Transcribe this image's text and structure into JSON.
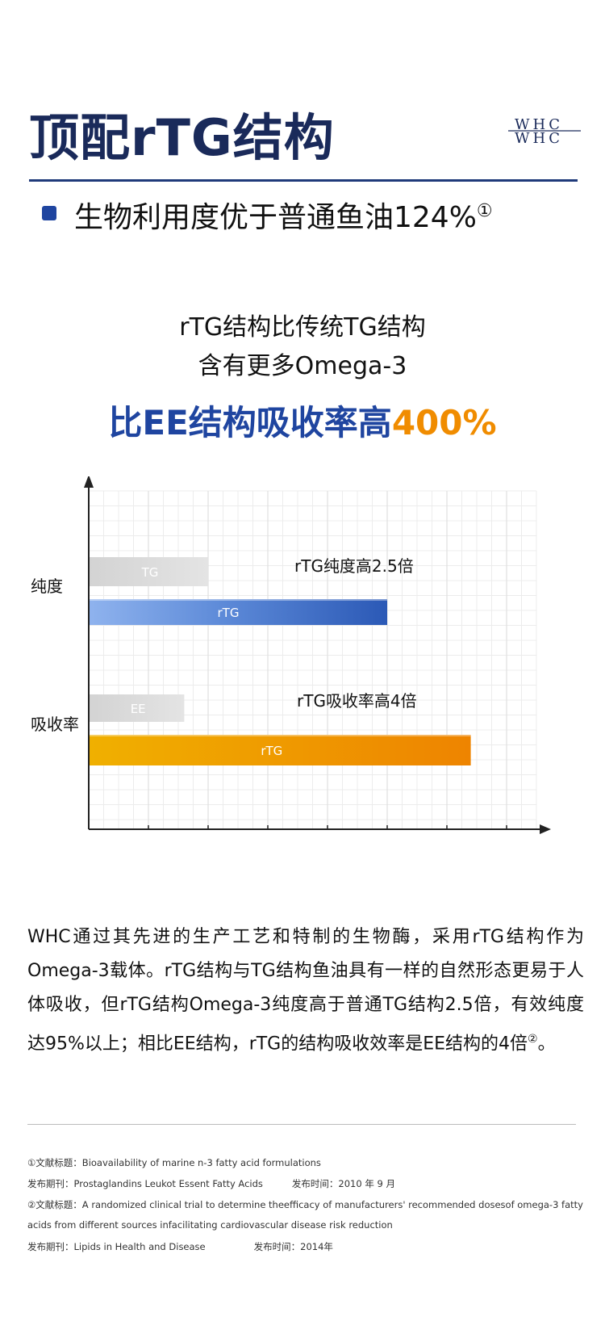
{
  "header": {
    "title": "顶配rTG结构",
    "logo_text": "WHC"
  },
  "bullet": {
    "text": "生物利用度优于普通鱼油124%",
    "note": "①"
  },
  "subtitle": {
    "line1": "rTG结构比传统TG结构",
    "line2": "含有更多Omega-3"
  },
  "headline": {
    "main": "比EE结构吸收率高",
    "highlight": "400%"
  },
  "chart_data": {
    "type": "bar",
    "orientation": "horizontal",
    "categories": [
      "纯度",
      "吸收率"
    ],
    "groups": [
      {
        "category": "纯度",
        "annotation": "rTG纯度高2.5倍",
        "bars": [
          {
            "label": "TG",
            "value": 2.0,
            "color": "#d8d8d8"
          },
          {
            "label": "rTG",
            "value": 5.0,
            "color": "#3a6bc8"
          }
        ]
      },
      {
        "category": "吸收率",
        "annotation": "rTG吸收率高4倍",
        "bars": [
          {
            "label": "EE",
            "value": 1.6,
            "color": "#d8d8d8"
          },
          {
            "label": "rTG",
            "value": 6.4,
            "color": "#f0a000"
          }
        ]
      }
    ],
    "xlim": [
      0,
      7.5
    ],
    "grid": true,
    "xlabel": "",
    "ylabel": "",
    "colors": {
      "grey": "#d9d9d9",
      "blue": "#3461bd",
      "orange": "#ee8c00"
    }
  },
  "paragraph": {
    "text": "WHC通过其先进的生产工艺和特制的生物酶，采用rTG结构作为Omega-3载体。rTG结构与TG结构鱼油具有一样的自然形态更易于人体吸收，但rTG结构Omega-3纯度高于普通TG结构2.5倍，有效纯度达95%以上；相比EE结构，rTG的结构吸收效率是EE结构的4倍",
    "note": "②",
    "end": "。"
  },
  "references": {
    "r1_title": "①文献标题：Bioavailability of marine n-3 fatty acid formulations",
    "r1_journal": "发布期刊：Prostaglandins Leukot Essent Fatty Acids",
    "r1_date": "发布时间：2010 年 9 月",
    "r2_title": "②文献标题：A randomized clinical trial to determine theefficacy of manufacturers' recommended dosesof omega-3 fatty",
    "r2_title_cont": "acids from different sources infacilitating cardiovascular disease risk reduction",
    "r2_journal": "发布期刊：Lipids in Health and Disease",
    "r2_date": "发布时间：2014年"
  }
}
